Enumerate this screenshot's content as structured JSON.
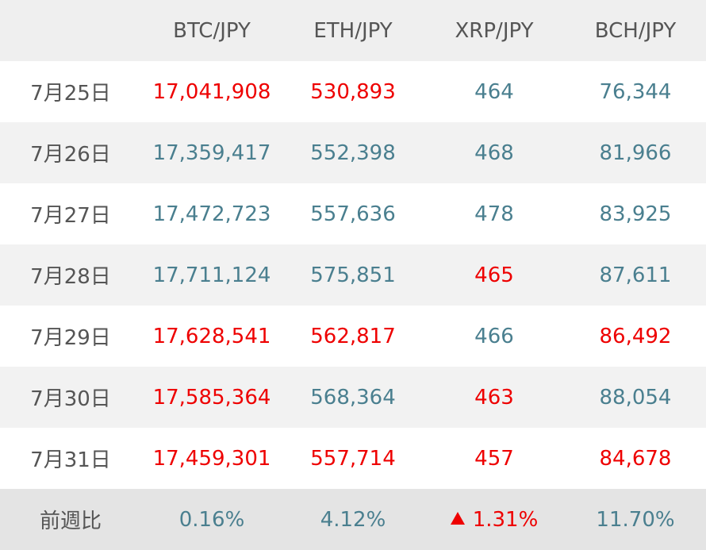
{
  "colors": {
    "value_normal": "#4a7f8f",
    "value_highlight": "#ee0000",
    "header_text": "#555555"
  },
  "header": {
    "corner": "",
    "columns": [
      "BTC/JPY",
      "ETH/JPY",
      "XRP/JPY",
      "BCH/JPY"
    ]
  },
  "rows": [
    {
      "date": "7月25日",
      "values": [
        "17,041,908",
        "530,893",
        "464",
        "76,344"
      ],
      "highlight": [
        true,
        true,
        false,
        false
      ]
    },
    {
      "date": "7月26日",
      "values": [
        "17,359,417",
        "552,398",
        "468",
        "81,966"
      ],
      "highlight": [
        false,
        false,
        false,
        false
      ]
    },
    {
      "date": "7月27日",
      "values": [
        "17,472,723",
        "557,636",
        "478",
        "83,925"
      ],
      "highlight": [
        false,
        false,
        false,
        false
      ]
    },
    {
      "date": "7月28日",
      "values": [
        "17,711,124",
        "575,851",
        "465",
        "87,611"
      ],
      "highlight": [
        false,
        false,
        true,
        false
      ]
    },
    {
      "date": "7月29日",
      "values": [
        "17,628,541",
        "562,817",
        "466",
        "86,492"
      ],
      "highlight": [
        true,
        true,
        false,
        true
      ]
    },
    {
      "date": "7月30日",
      "values": [
        "17,585,364",
        "568,364",
        "463",
        "88,054"
      ],
      "highlight": [
        true,
        false,
        true,
        false
      ]
    },
    {
      "date": "7月31日",
      "values": [
        "17,459,301",
        "557,714",
        "457",
        "84,678"
      ],
      "highlight": [
        true,
        true,
        true,
        true
      ]
    }
  ],
  "footer": {
    "label": "前週比",
    "values": [
      "0.16%",
      "4.12%",
      "1.31%",
      "11.70%"
    ],
    "highlight": [
      false,
      false,
      true,
      false
    ],
    "icons": [
      "",
      "",
      "triangle-up-icon",
      ""
    ]
  }
}
